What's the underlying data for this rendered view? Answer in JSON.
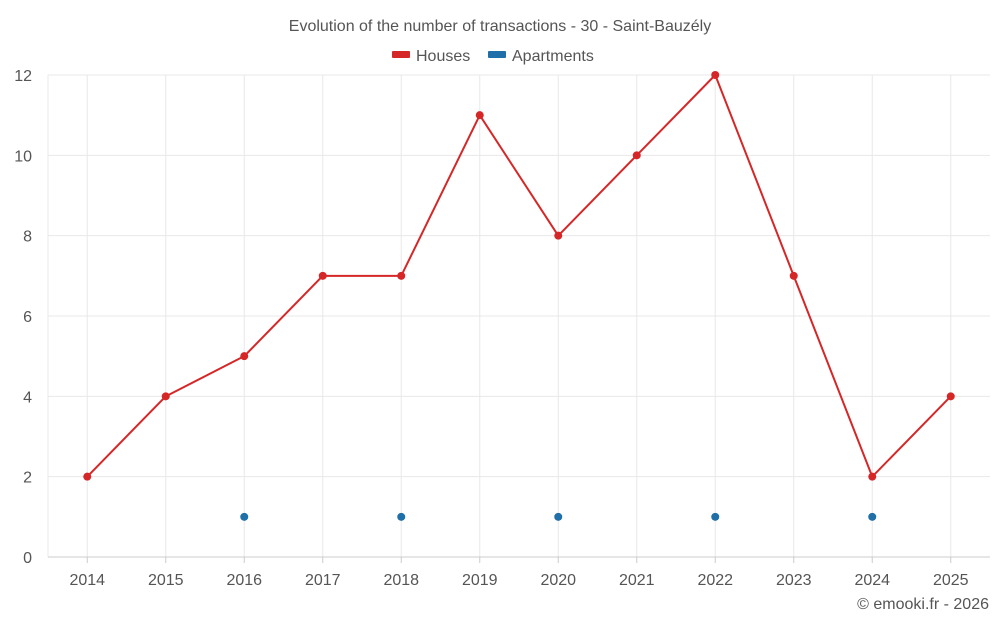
{
  "chart_data": {
    "type": "line",
    "title": "Evolution of the number of transactions - 30 - Saint-Bauzély",
    "categories": [
      "2014",
      "2015",
      "2016",
      "2017",
      "2018",
      "2019",
      "2020",
      "2021",
      "2022",
      "2023",
      "2024",
      "2025"
    ],
    "series": [
      {
        "name": "Houses",
        "color": "#d62728",
        "values": [
          2,
          4,
          5,
          7,
          7,
          11,
          8,
          10,
          12,
          7,
          2,
          4
        ],
        "connected": true
      },
      {
        "name": "Apartments",
        "color": "#1f6fa8",
        "values": [
          null,
          null,
          1,
          null,
          1,
          null,
          1,
          null,
          1,
          null,
          1,
          null
        ],
        "connected": false
      }
    ],
    "ylim": [
      0,
      12
    ],
    "yticks": [
      0,
      2,
      4,
      6,
      8,
      10,
      12
    ],
    "grid": true,
    "legend": "top-center"
  },
  "footer": {
    "credit": "© emooki.fr - 2026"
  }
}
